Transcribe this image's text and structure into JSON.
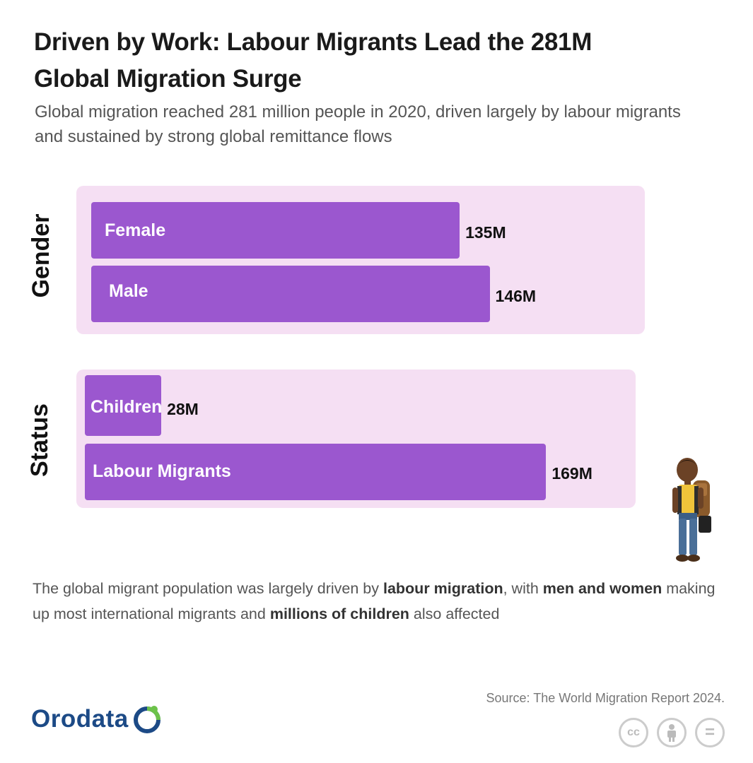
{
  "header": {
    "title": "Driven by Work: Labour Migrants Lead the 281M Global Migration Surge",
    "subtitle": "Global migration reached 281 million people in 2020, driven largely by labour migrants and sustained by strong global remittance flows"
  },
  "chart_data": {
    "type": "bar",
    "orientation": "horizontal",
    "units": "million people",
    "groups": [
      {
        "name": "Gender",
        "categories": [
          "Female",
          "Male"
        ],
        "values": [
          135,
          146
        ],
        "value_labels": [
          "135M",
          "146M"
        ]
      },
      {
        "name": "Status",
        "categories": [
          "Children",
          "Labour Migrants"
        ],
        "values": [
          28,
          169
        ],
        "value_labels": [
          "28M",
          "169M"
        ]
      }
    ],
    "bar_color": "#9b57cf",
    "panel_color": "#f5dff3"
  },
  "note": {
    "t1": "The global migrant population was largely driven by ",
    "b1": "labour migration",
    "t2": ", with ",
    "b2": "men and women",
    "t3": " making up most international migrants and ",
    "b3": "millions of children",
    "t4": " also affected"
  },
  "footer": {
    "source": "Source: The World Migration Report 2024.",
    "brand": "Orodata",
    "license_icons": [
      "cc-icon",
      "by-attribution-icon",
      "nd-equals-icon"
    ],
    "license_text": [
      "cc",
      "",
      "="
    ]
  }
}
